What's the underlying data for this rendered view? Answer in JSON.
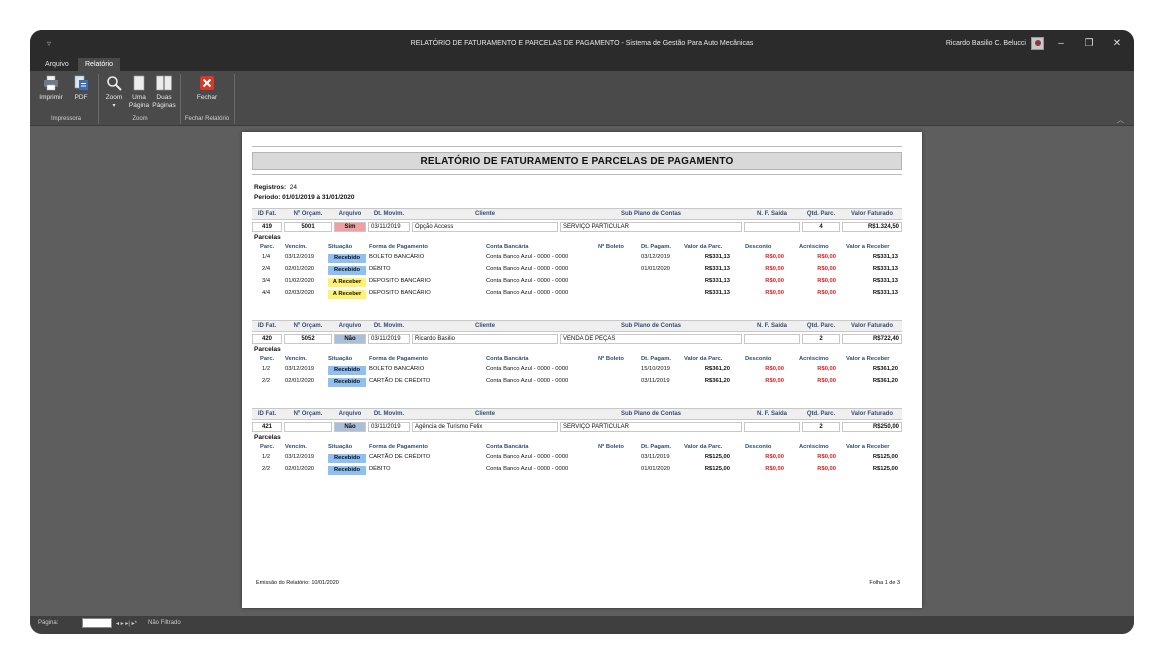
{
  "window": {
    "title": "RELATÓRIO DE FATURAMENTO E PARCELAS DE PAGAMENTO  -  Sistema de Gestão Para Auto Mecânicas",
    "user": "Ricardo Basilio C. Belucci",
    "minimize": "–",
    "restore": "❐",
    "close": "✕"
  },
  "tabs": [
    {
      "label": "Arquivo"
    },
    {
      "label": "Relatório"
    }
  ],
  "ribbon": {
    "imprimir": "Imprimir",
    "pdf": "PDF",
    "group_impressora": "Impressora",
    "zoom": "Zoom",
    "uma_pagina_1": "Uma",
    "uma_pagina_2": "Página",
    "duas_paginas_1": "Duas",
    "duas_paginas_2": "Páginas",
    "group_zoom": "Zoom",
    "fechar": "Fechar",
    "group_fechar": "Fechar Relatório"
  },
  "statusbar": {
    "pagina_label": "Página:",
    "nav": "◂  ▸ ▸| ▸*",
    "filter": "Não Filtrado"
  },
  "report": {
    "title": "RELATÓRIO DE FATURAMENTO E PARCELAS DE PAGAMENTO",
    "registros_label": "Registros:",
    "registros_value": "24",
    "periodo": "Período: 01/01/2019 à 31/01/2020",
    "fatura_headers": {
      "id": "ID Fat.",
      "orcam": "Nº Orçam.",
      "arquivo": "Arquivo",
      "movim": "Dt. Movim.",
      "cliente": "Cliente",
      "subplano": "Sub Plano de Contas",
      "nf": "N. F. Saída",
      "qtd": "Qtd. Parc.",
      "valor": "Valor Faturado"
    },
    "parcelas_label": "Parcelas",
    "parcela_headers": {
      "parc": "Parc.",
      "vencim": "Vencim.",
      "situacao": "Situação",
      "forma": "Forma de Pagamento",
      "conta": "Conta Bancária",
      "boleto": "Nº Boleto",
      "pagam": "Dt. Pagam.",
      "valor_parc": "Valor da Parc.",
      "desconto": "Desconto",
      "acrescimo": "Acréscimo",
      "valor_receber": "Valor a Receber"
    },
    "faturas": [
      {
        "id": "419",
        "orcam": "5001",
        "arquivo": "Sim",
        "movim": "03/11/2019",
        "cliente": "Opção Access",
        "subplano": "SERVIÇO PARTICULAR",
        "nf": "",
        "qtd": "4",
        "valor": "R$1.324,50",
        "parcelas": [
          {
            "parc": "1/4",
            "vencim": "03/12/2019",
            "situacao": "Recebido",
            "forma": "BOLETO BANCÁRIO",
            "conta": "Conta Banco Azul - 0000 - 0000",
            "boleto": "",
            "pagam": "03/12/2019",
            "valor_parc": "R$331,13",
            "desconto": "R$0,00",
            "acrescimo": "R$0,00",
            "valor_receber": "R$331,13"
          },
          {
            "parc": "2/4",
            "vencim": "02/01/2020",
            "situacao": "Recebido",
            "forma": "DÉBITO",
            "conta": "Conta Banco Azul - 0000 - 0000",
            "boleto": "",
            "pagam": "01/01/2020",
            "valor_parc": "R$331,13",
            "desconto": "R$0,00",
            "acrescimo": "R$0,00",
            "valor_receber": "R$331,13"
          },
          {
            "parc": "3/4",
            "vencim": "01/02/2020",
            "situacao": "A Receber",
            "forma": "DEPOSITO BANCÁRIO",
            "conta": "Conta Banco Azul - 0000 - 0000",
            "boleto": "",
            "pagam": "",
            "valor_parc": "R$331,13",
            "desconto": "R$0,00",
            "acrescimo": "R$0,00",
            "valor_receber": "R$331,13"
          },
          {
            "parc": "4/4",
            "vencim": "02/03/2020",
            "situacao": "A Receber",
            "forma": "DEPOSITO BANCÁRIO",
            "conta": "Conta Banco Azul - 0000 - 0000",
            "boleto": "",
            "pagam": "",
            "valor_parc": "R$331,13",
            "desconto": "R$0,00",
            "acrescimo": "R$0,00",
            "valor_receber": "R$331,13"
          }
        ]
      },
      {
        "id": "420",
        "orcam": "5052",
        "arquivo": "Não",
        "movim": "03/11/2019",
        "cliente": "Ricardo Basilio",
        "subplano": "VENDA DE PEÇAS",
        "nf": "",
        "qtd": "2",
        "valor": "R$722,40",
        "parcelas": [
          {
            "parc": "1/2",
            "vencim": "03/12/2019",
            "situacao": "Recebido",
            "forma": "BOLETO BANCÁRIO",
            "conta": "Conta Banco Azul - 0000 - 0000",
            "boleto": "",
            "pagam": "15/10/2019",
            "valor_parc": "R$361,20",
            "desconto": "R$0,00",
            "acrescimo": "R$0,00",
            "valor_receber": "R$361,20"
          },
          {
            "parc": "2/2",
            "vencim": "02/01/2020",
            "situacao": "Recebido",
            "forma": "CARTÃO DE CRÉDITO",
            "conta": "Conta Banco Azul - 0000 - 0000",
            "boleto": "",
            "pagam": "03/11/2019",
            "valor_parc": "R$361,20",
            "desconto": "R$0,00",
            "acrescimo": "R$0,00",
            "valor_receber": "R$361,20"
          }
        ]
      },
      {
        "id": "421",
        "orcam": "",
        "arquivo": "Não",
        "movim": "03/11/2019",
        "cliente": "Agência de Turismo Felix",
        "subplano": "SERVIÇO PARTICULAR",
        "nf": "",
        "qtd": "2",
        "valor": "R$250,00",
        "parcelas": [
          {
            "parc": "1/2",
            "vencim": "03/12/2019",
            "situacao": "Recebido",
            "forma": "CARTÃO DE CRÉDITO",
            "conta": "Conta Banco Azul - 0000 - 0000",
            "boleto": "",
            "pagam": "03/11/2019",
            "valor_parc": "R$125,00",
            "desconto": "R$0,00",
            "acrescimo": "R$0,00",
            "valor_receber": "R$125,00"
          },
          {
            "parc": "2/2",
            "vencim": "02/01/2020",
            "situacao": "Recebido",
            "forma": "DÉBITO",
            "conta": "Conta Banco Azul - 0000 - 0000",
            "boleto": "",
            "pagam": "01/01/2020",
            "valor_parc": "R$125,00",
            "desconto": "R$0,00",
            "acrescimo": "R$0,00",
            "valor_receber": "R$125,00"
          }
        ]
      }
    ],
    "emissao": "Emissão do Relatório: 10/01/2020",
    "folha": "Folha 1 de 3"
  }
}
